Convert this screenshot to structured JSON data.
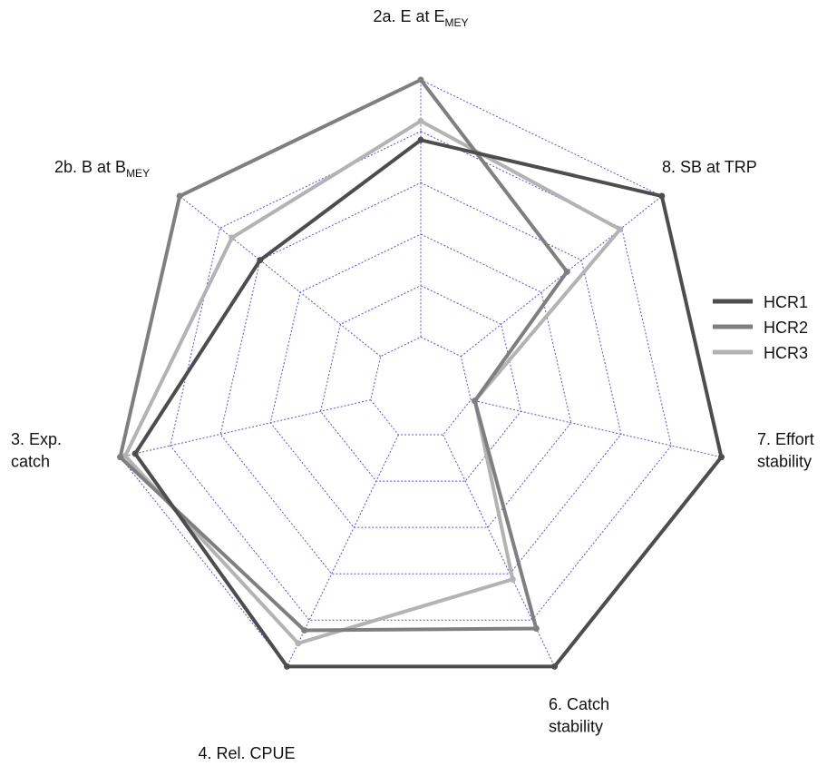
{
  "chart_data": {
    "type": "radar",
    "axes": [
      {
        "label": "2a. E at E",
        "sub": "MEY"
      },
      {
        "label": "8. SB at TRP",
        "sub": ""
      },
      {
        "label": "7. Effort stability",
        "sub": ""
      },
      {
        "label": "6. Catch stability",
        "sub": ""
      },
      {
        "label": "4. Rel. CPUE",
        "sub": ""
      },
      {
        "label": "3. Exp. catch",
        "sub": ""
      },
      {
        "label": "2b. B at B",
        "sub": "MEY"
      }
    ],
    "rings": 6,
    "rlim": [
      0,
      6
    ],
    "grid": true,
    "legend_position": "right",
    "series": [
      {
        "name": "HCR1",
        "color": "#4d4d4d",
        "values": [
          4.83,
          6.0,
          6.0,
          6.0,
          6.0,
          5.7,
          4.0
        ]
      },
      {
        "name": "HCR2",
        "color": "#7f7f7f",
        "values": [
          6.0,
          3.64,
          1.08,
          5.18,
          5.22,
          6.0,
          6.0
        ]
      },
      {
        "name": "HCR3",
        "color": "#b3b3b3",
        "values": [
          5.2,
          4.96,
          1.08,
          4.12,
          5.5,
          5.9,
          4.7
        ]
      }
    ]
  },
  "legend": {
    "items": [
      {
        "label": "HCR1"
      },
      {
        "label": "HCR2"
      },
      {
        "label": "HCR3"
      }
    ]
  }
}
